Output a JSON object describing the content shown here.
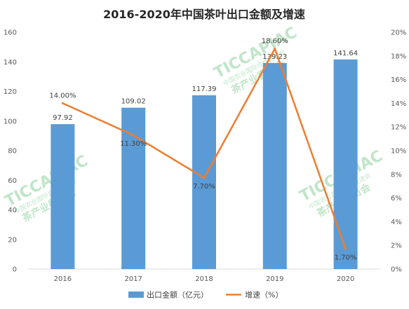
{
  "chart_data": {
    "type": "bar",
    "title": "2016-2020年中国茶叶出口金额及增速",
    "categories": [
      "2016",
      "2017",
      "2018",
      "2019",
      "2020"
    ],
    "series": [
      {
        "name": "出口金额（亿元）",
        "type": "bar",
        "axis": "left",
        "color": "#5b9bd5",
        "values": [
          97.92,
          109.02,
          117.39,
          139.23,
          141.64
        ],
        "labels": [
          "97.92",
          "109.02",
          "117.39",
          "139.23",
          "141.64"
        ]
      },
      {
        "name": "增速（%）",
        "type": "line",
        "axis": "right",
        "color": "#ed7d31",
        "values": [
          14.0,
          11.3,
          7.7,
          18.6,
          1.7
        ],
        "labels": [
          "14.00%",
          "11.30%",
          "7.70%",
          "18.60%",
          "1.70%"
        ]
      }
    ],
    "y_left": {
      "ylim": [
        0,
        160
      ],
      "ticks": [
        "0",
        "20",
        "40",
        "60",
        "80",
        "100",
        "120",
        "140",
        "160"
      ]
    },
    "y_right": {
      "ylim": [
        0,
        20
      ],
      "ticks": [
        "0%",
        "2%",
        "4%",
        "6%",
        "8%",
        "10%",
        "12%",
        "14%",
        "16%",
        "18%",
        "20%"
      ]
    },
    "legend": "bottom",
    "grid": false
  },
  "watermark": {
    "brand": "TICCAPIAC",
    "org": "中国农业国际合作促进会",
    "sub": "茶产业委员会"
  }
}
